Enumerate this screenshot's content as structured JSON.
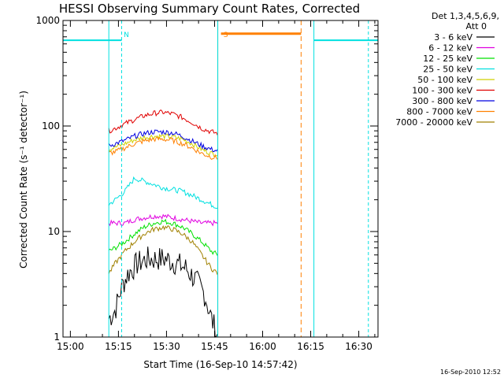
{
  "chart_data": {
    "type": "line",
    "title": "HESSI Observing Summary Count Rates, Corrected",
    "xlabel": "Start Time (16-Sep-10 14:57:42)",
    "ylabel": "Corrected Count Rate (s⁻¹ detector⁻¹)",
    "y_scale": "log",
    "ylim": [
      1,
      1000
    ],
    "xlim": [
      "14:57:42",
      "16:36:00"
    ],
    "x_ticks": [
      "15:00",
      "15:15",
      "15:30",
      "15:45",
      "16:00",
      "16:15",
      "16:30"
    ],
    "y_ticks": [
      "1",
      "10",
      "100",
      "1000"
    ],
    "grid": false,
    "legend_position": "right",
    "legend_header": [
      "Det 1,3,4,5,6,9,",
      "Att 0"
    ],
    "timestamp": "16-Sep-2010 12:52",
    "flags": [
      {
        "label": "N",
        "color": "#00e0e0",
        "x": "15:16"
      },
      {
        "label": "S",
        "color": "#ff8000",
        "x": "15:47"
      }
    ],
    "series": [
      {
        "name": "3 - 6 keV",
        "color": "#000000",
        "x": [
          "15:12",
          "15:14",
          "15:16",
          "15:18",
          "15:21",
          "15:24",
          "15:27",
          "15:30",
          "15:33",
          "15:36",
          "15:39",
          "15:42",
          "15:44",
          "15:46"
        ],
        "values": [
          1.5,
          1.8,
          3.0,
          4.0,
          5.0,
          5.5,
          5.5,
          5.5,
          5.0,
          4.5,
          3.5,
          2.5,
          1.5,
          1.0
        ]
      },
      {
        "name": "6 - 12 keV",
        "color": "#e000e0",
        "x": [
          "15:12",
          "15:14",
          "15:17",
          "15:20",
          "15:23",
          "15:26",
          "15:29",
          "15:32",
          "15:35",
          "15:38",
          "15:41",
          "15:44",
          "15:46"
        ],
        "values": [
          12,
          12,
          12,
          13,
          13.5,
          14,
          14,
          13.5,
          13,
          12.5,
          12,
          12,
          12
        ]
      },
      {
        "name": "12 - 25 keV",
        "color": "#00e000",
        "x": [
          "15:12",
          "15:14",
          "15:17",
          "15:20",
          "15:23",
          "15:26",
          "15:29",
          "15:32",
          "15:35",
          "15:38",
          "15:41",
          "15:44",
          "15:46"
        ],
        "values": [
          6.5,
          7,
          8,
          9.5,
          11,
          12,
          12.5,
          12,
          11,
          9.5,
          8,
          6.5,
          6
        ]
      },
      {
        "name": "25 - 50 keV",
        "color": "#00e0e0",
        "x": [
          "15:12",
          "15:14",
          "15:17",
          "15:20",
          "15:23",
          "15:26",
          "15:29",
          "15:32",
          "15:35",
          "15:38",
          "15:41",
          "15:44",
          "15:46"
        ],
        "values": [
          18,
          20,
          24,
          32,
          30,
          28,
          26,
          25,
          24,
          22,
          20,
          18,
          17
        ]
      },
      {
        "name": "50 - 100 keV",
        "color": "#d0d000",
        "x": [
          "15:12",
          "15:14",
          "15:17",
          "15:20",
          "15:23",
          "15:26",
          "15:29",
          "15:32",
          "15:35",
          "15:38",
          "15:41",
          "15:44",
          "15:46"
        ],
        "values": [
          60,
          63,
          68,
          74,
          78,
          80,
          80,
          79,
          75,
          68,
          60,
          55,
          54
        ]
      },
      {
        "name": "100 - 300 keV",
        "color": "#e00000",
        "x": [
          "15:12",
          "15:14",
          "15:17",
          "15:20",
          "15:23",
          "15:26",
          "15:29",
          "15:32",
          "15:35",
          "15:38",
          "15:41",
          "15:44",
          "15:46"
        ],
        "values": [
          90,
          95,
          105,
          115,
          125,
          132,
          135,
          130,
          120,
          108,
          95,
          88,
          85
        ]
      },
      {
        "name": "300 - 800 keV",
        "color": "#0000e0",
        "x": [
          "15:12",
          "15:14",
          "15:17",
          "15:20",
          "15:23",
          "15:26",
          "15:29",
          "15:32",
          "15:35",
          "15:38",
          "15:41",
          "15:44",
          "15:46"
        ],
        "values": [
          65,
          68,
          73,
          80,
          85,
          88,
          88,
          86,
          80,
          72,
          65,
          60,
          58
        ]
      },
      {
        "name": "800 - 7000 keV",
        "color": "#ff8000",
        "x": [
          "15:12",
          "15:14",
          "15:17",
          "15:20",
          "15:23",
          "15:26",
          "15:29",
          "15:32",
          "15:35",
          "15:38",
          "15:41",
          "15:44",
          "15:46"
        ],
        "values": [
          55,
          57,
          62,
          68,
          72,
          75,
          75,
          73,
          68,
          62,
          55,
          51,
          50
        ]
      },
      {
        "name": "7000 - 20000 keV",
        "color": "#a08000",
        "x": [
          "15:12",
          "15:14",
          "15:17",
          "15:20",
          "15:23",
          "15:26",
          "15:29",
          "15:32",
          "15:35",
          "15:38",
          "15:41",
          "15:44",
          "15:46"
        ],
        "values": [
          4,
          5,
          6.5,
          8,
          9.5,
          10.5,
          11,
          10.5,
          9.5,
          8,
          6,
          4.5,
          4
        ]
      }
    ]
  }
}
